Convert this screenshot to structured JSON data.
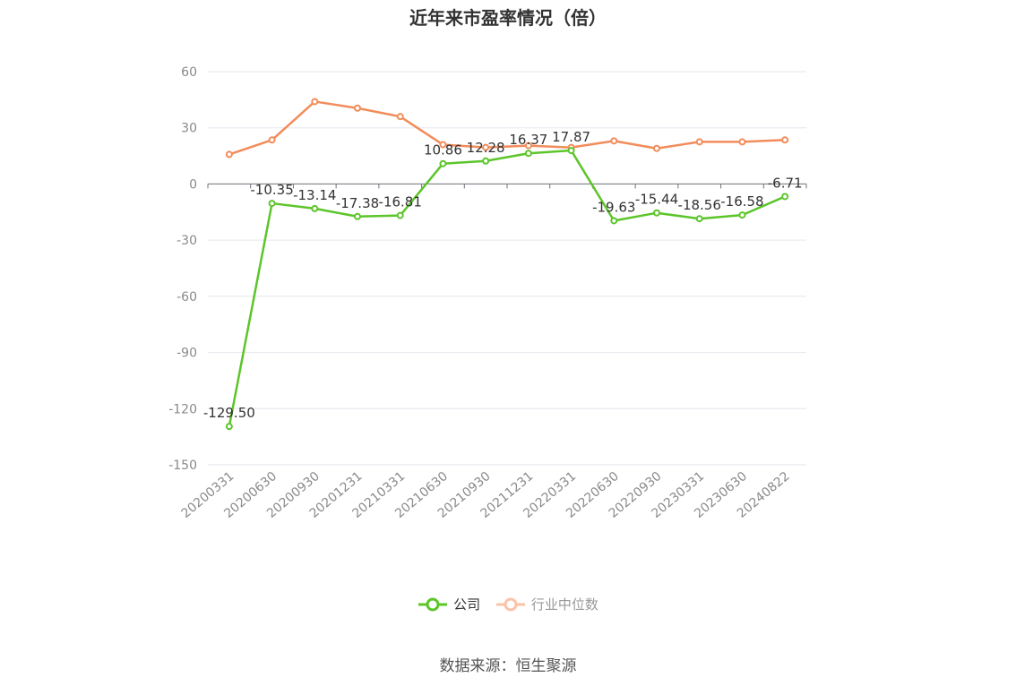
{
  "chart_data": {
    "type": "line",
    "title": "近年来市盈率情况（倍）",
    "categories": [
      "20200331",
      "20200630",
      "20200930",
      "20201231",
      "20210331",
      "20210630",
      "20210930",
      "20211231",
      "20220331",
      "20220630",
      "20220930",
      "20230331",
      "20230630",
      "20240822"
    ],
    "ylim": [
      -150,
      60
    ],
    "yticks": [
      60,
      30,
      0,
      -30,
      -60,
      -90,
      -120,
      -150
    ],
    "grid": true,
    "legend_position": "bottom",
    "series": [
      {
        "name": "公司",
        "color": "#5cc52a",
        "values": [
          -129.5,
          -10.35,
          -13.14,
          -17.38,
          -16.81,
          10.86,
          12.28,
          16.37,
          17.87,
          -19.63,
          -15.44,
          -18.56,
          -16.58,
          -6.71
        ],
        "labels": [
          "-129.50",
          "-10.35",
          "-13.14",
          "-17.38",
          "-16.81",
          "10.86",
          "12.28",
          "16.37",
          "17.87",
          "-19.63",
          "-15.44",
          "-18.56",
          "-16.58",
          "-6.71"
        ]
      },
      {
        "name": "行业中位数",
        "color": "#f28c5a",
        "values": [
          15.8,
          23.5,
          44.0,
          40.5,
          36.0,
          21.0,
          19.5,
          20.5,
          19.5,
          23.0,
          19.0,
          22.5,
          22.5,
          23.5
        ]
      }
    ]
  },
  "legend": {
    "company": "公司",
    "industry": "行业中位数"
  },
  "source": "数据来源：恒生聚源"
}
